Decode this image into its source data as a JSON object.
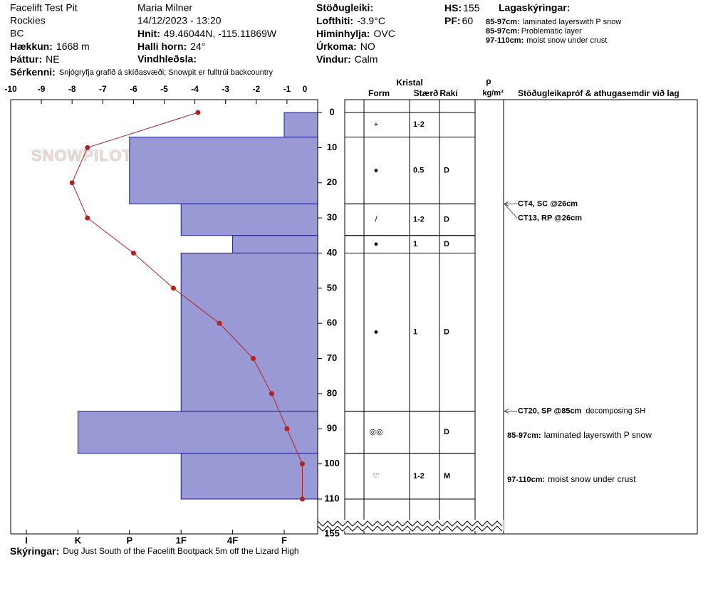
{
  "header": {
    "site": "Facelift Test Pit",
    "range": "Rockies",
    "state": "BC",
    "elevation": {
      "label": "Hækkun:",
      "value": "1668 m"
    },
    "aspect": {
      "label": "Þáttur:",
      "value": "NE"
    },
    "observer": "Maria Milner",
    "datetime": "14/12/2023 - 13:20",
    "coords": {
      "label": "Hnit:",
      "value": "49.46044N, -115.11869W"
    },
    "slope": {
      "label": "Halli horn:",
      "value": "24°"
    },
    "wind_loading": {
      "label": "Vindhleðsla:"
    },
    "stability": {
      "label": "Stöðugleiki:"
    },
    "air_temp": {
      "label": "Lofthiti:",
      "value": "-3.9°C"
    },
    "sky": {
      "label": "Himinhylja:",
      "value": "OVC"
    },
    "precip": {
      "label": "Úrkoma:",
      "value": "NO"
    },
    "wind": {
      "label": "Vindur:",
      "value": "Calm"
    },
    "hs": {
      "label": "HS:",
      "value": 155
    },
    "pf": {
      "label": "PF:",
      "value": 60
    },
    "layer_notes": {
      "title": "Lagaskýringar:",
      "items": [
        {
          "range": "85-97cm:",
          "text": "laminated layerswith P snow"
        },
        {
          "range": "85-97cm:",
          "text": "Problematic layer"
        },
        {
          "range": "97-110cm:",
          "text": "moist snow under crust"
        }
      ]
    },
    "features": {
      "label": "Sérkenni:",
      "value": "Snjógryfja grafið á skíðasvæði; Snowpit er fulltrúi backcountry"
    }
  },
  "table_header": {
    "crystal": "Kristal",
    "form": "Form",
    "size": "Stærð",
    "moisture": "Raki",
    "rho": "ρ",
    "density_unit": "kg/m³",
    "comments": "Stöðugleikapróf & athugasemdir við lag"
  },
  "watermark": "SNOWPILOT",
  "chart_data": {
    "type": "snow-profile",
    "xlim": [
      -10,
      0
    ],
    "xticks": [
      -10,
      -9,
      -8,
      -7,
      -6,
      -5,
      -4,
      -3,
      -2,
      -1,
      0
    ],
    "ylim": [
      0,
      110
    ],
    "yticks": [
      0,
      10,
      20,
      30,
      40,
      50,
      60,
      70,
      80,
      90,
      100,
      110
    ],
    "depth_end_label": 155,
    "temperature": {
      "color": "#b22222",
      "depths": [
        0,
        10,
        20,
        30,
        40,
        50,
        60,
        70,
        80,
        90,
        100,
        110
      ],
      "values": [
        -3.9,
        -7.5,
        -8.0,
        -7.5,
        -6.0,
        -4.7,
        -3.2,
        -2.1,
        -1.5,
        -1.0,
        -0.5,
        -0.5
      ]
    },
    "hardness_scale": [
      "I",
      "K",
      "P",
      "1F",
      "4F",
      "F"
    ],
    "bar_color": "#9999d6",
    "layers": [
      {
        "top": 0,
        "bottom": 7,
        "hardness": "F",
        "form": "+",
        "size": "1-2",
        "moisture": null
      },
      {
        "top": 7,
        "bottom": 26,
        "hardness": "P",
        "form": "●",
        "size": "0.5",
        "moisture": "D"
      },
      {
        "top": 26,
        "bottom": 35,
        "hardness": "1F",
        "form": "/",
        "size": "1-2",
        "moisture": "D"
      },
      {
        "top": 35,
        "bottom": 40,
        "hardness": "4F",
        "form": "●",
        "size": "1",
        "moisture": "D"
      },
      {
        "top": 40,
        "bottom": 85,
        "hardness": "1F",
        "form": "●",
        "size": "1",
        "moisture": "D"
      },
      {
        "top": 85,
        "bottom": 97,
        "hardness": "K",
        "form": "◎◎",
        "size": null,
        "moisture": "D"
      },
      {
        "top": 97,
        "bottom": 110,
        "hardness": "1F",
        "form": "♡",
        "size": "1-2",
        "moisture": "M"
      }
    ],
    "tests": [
      {
        "depth": 26,
        "text": "CT4, SC @26cm"
      },
      {
        "depth": 26,
        "text": "CT13, RP @26cm"
      },
      {
        "depth": 85,
        "text": "CT20, SP @85cm",
        "note": "decomposing SH"
      }
    ],
    "layer_comments": [
      {
        "layer": 5,
        "range": "85-97cm:",
        "text": "laminated layerswith P snow"
      },
      {
        "layer": 6,
        "range": "97-110cm:",
        "text": "moist snow under crust"
      }
    ]
  },
  "footer": {
    "label": "Skýringar:",
    "value": "Dug Just South of the Facelift Bootpack 5m off the Lizard High"
  }
}
